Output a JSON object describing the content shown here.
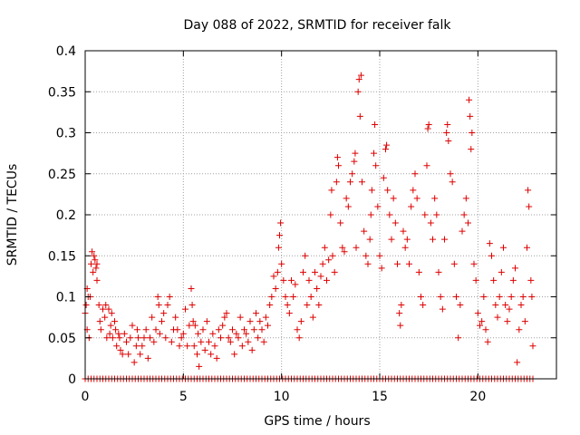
{
  "chart_data": {
    "type": "scatter",
    "title": "Day 088 of 2022, SRMTID for receiver falk",
    "xlabel": "GPS time / hours",
    "ylabel": "SRMTID / TECUs",
    "xlim": [
      0,
      24
    ],
    "ylim": [
      0,
      0.4
    ],
    "grid": true,
    "marker": "+",
    "color": "#dd0000",
    "x_ticks": [
      0,
      5,
      10,
      15,
      20
    ],
    "x_tick_labels": [
      "0",
      "5",
      "10",
      "15",
      "20"
    ],
    "y_ticks": [
      0,
      0.05,
      0.1,
      0.15,
      0.2,
      0.25,
      0.3,
      0.35,
      0.4
    ],
    "y_tick_labels": [
      "0",
      "0.05",
      "0.1",
      "0.15",
      "0.2",
      "0.25",
      "0.3",
      "0.35",
      "0.4"
    ],
    "zero_baseline": {
      "x_start": 0.0,
      "x_end": 22.8,
      "step": 0.15,
      "value": 0
    },
    "series": [
      {
        "name": "SRMTID",
        "points": [
          [
            0.0,
            0.08
          ],
          [
            0.05,
            0.09
          ],
          [
            0.1,
            0.11
          ],
          [
            0.1,
            0.06
          ],
          [
            0.15,
            0.1
          ],
          [
            0.2,
            0.05
          ],
          [
            0.25,
            0.1
          ],
          [
            0.3,
            0.14
          ],
          [
            0.35,
            0.155
          ],
          [
            0.4,
            0.13
          ],
          [
            0.45,
            0.15
          ],
          [
            0.5,
            0.145
          ],
          [
            0.55,
            0.135
          ],
          [
            0.6,
            0.14
          ],
          [
            0.6,
            0.12
          ],
          [
            0.7,
            0.09
          ],
          [
            0.75,
            0.07
          ],
          [
            0.8,
            0.06
          ],
          [
            0.9,
            0.085
          ],
          [
            1.0,
            0.075
          ],
          [
            1.05,
            0.09
          ],
          [
            1.1,
            0.05
          ],
          [
            1.2,
            0.085
          ],
          [
            1.25,
            0.055
          ],
          [
            1.3,
            0.065
          ],
          [
            1.35,
            0.08
          ],
          [
            1.4,
            0.05
          ],
          [
            1.5,
            0.07
          ],
          [
            1.55,
            0.06
          ],
          [
            1.6,
            0.04
          ],
          [
            1.7,
            0.055
          ],
          [
            1.75,
            0.05
          ],
          [
            1.8,
            0.035
          ],
          [
            1.9,
            0.03
          ],
          [
            2.0,
            0.055
          ],
          [
            2.1,
            0.045
          ],
          [
            2.2,
            0.03
          ],
          [
            2.3,
            0.05
          ],
          [
            2.4,
            0.065
          ],
          [
            2.5,
            0.02
          ],
          [
            2.6,
            0.04
          ],
          [
            2.65,
            0.06
          ],
          [
            2.7,
            0.05
          ],
          [
            2.8,
            0.03
          ],
          [
            2.9,
            0.04
          ],
          [
            3.0,
            0.05
          ],
          [
            3.1,
            0.06
          ],
          [
            3.2,
            0.025
          ],
          [
            3.3,
            0.05
          ],
          [
            3.4,
            0.075
          ],
          [
            3.5,
            0.045
          ],
          [
            3.6,
            0.06
          ],
          [
            3.7,
            0.1
          ],
          [
            3.75,
            0.09
          ],
          [
            3.8,
            0.055
          ],
          [
            3.9,
            0.07
          ],
          [
            4.0,
            0.08
          ],
          [
            4.1,
            0.05
          ],
          [
            4.2,
            0.09
          ],
          [
            4.3,
            0.1
          ],
          [
            4.4,
            0.045
          ],
          [
            4.5,
            0.06
          ],
          [
            4.6,
            0.075
          ],
          [
            4.7,
            0.06
          ],
          [
            4.8,
            0.04
          ],
          [
            4.9,
            0.05
          ],
          [
            5.0,
            0.055
          ],
          [
            5.1,
            0.085
          ],
          [
            5.2,
            0.04
          ],
          [
            5.3,
            0.065
          ],
          [
            5.4,
            0.11
          ],
          [
            5.45,
            0.09
          ],
          [
            5.5,
            0.07
          ],
          [
            5.55,
            0.04
          ],
          [
            5.6,
            0.065
          ],
          [
            5.7,
            0.03
          ],
          [
            5.75,
            0.055
          ],
          [
            5.8,
            0.015
          ],
          [
            5.9,
            0.045
          ],
          [
            6.0,
            0.06
          ],
          [
            6.1,
            0.035
          ],
          [
            6.2,
            0.07
          ],
          [
            6.3,
            0.045
          ],
          [
            6.4,
            0.03
          ],
          [
            6.5,
            0.055
          ],
          [
            6.6,
            0.04
          ],
          [
            6.7,
            0.025
          ],
          [
            6.8,
            0.06
          ],
          [
            6.9,
            0.05
          ],
          [
            7.0,
            0.065
          ],
          [
            7.1,
            0.075
          ],
          [
            7.2,
            0.08
          ],
          [
            7.3,
            0.05
          ],
          [
            7.4,
            0.045
          ],
          [
            7.5,
            0.06
          ],
          [
            7.6,
            0.03
          ],
          [
            7.7,
            0.055
          ],
          [
            7.8,
            0.05
          ],
          [
            7.9,
            0.075
          ],
          [
            8.0,
            0.04
          ],
          [
            8.1,
            0.06
          ],
          [
            8.2,
            0.055
          ],
          [
            8.3,
            0.045
          ],
          [
            8.4,
            0.07
          ],
          [
            8.5,
            0.035
          ],
          [
            8.6,
            0.06
          ],
          [
            8.7,
            0.08
          ],
          [
            8.8,
            0.05
          ],
          [
            8.9,
            0.07
          ],
          [
            9.0,
            0.06
          ],
          [
            9.1,
            0.045
          ],
          [
            9.2,
            0.075
          ],
          [
            9.3,
            0.065
          ],
          [
            9.4,
            0.09
          ],
          [
            9.5,
            0.1
          ],
          [
            9.6,
            0.125
          ],
          [
            9.7,
            0.11
          ],
          [
            9.8,
            0.13
          ],
          [
            9.85,
            0.16
          ],
          [
            9.9,
            0.175
          ],
          [
            9.95,
            0.19
          ],
          [
            10.0,
            0.14
          ],
          [
            10.1,
            0.12
          ],
          [
            10.2,
            0.1
          ],
          [
            10.3,
            0.09
          ],
          [
            10.4,
            0.08
          ],
          [
            10.5,
            0.12
          ],
          [
            10.6,
            0.1
          ],
          [
            10.7,
            0.115
          ],
          [
            10.8,
            0.06
          ],
          [
            10.9,
            0.05
          ],
          [
            11.0,
            0.07
          ],
          [
            11.1,
            0.13
          ],
          [
            11.2,
            0.15
          ],
          [
            11.3,
            0.09
          ],
          [
            11.4,
            0.12
          ],
          [
            11.5,
            0.1
          ],
          [
            11.6,
            0.075
          ],
          [
            11.7,
            0.13
          ],
          [
            11.8,
            0.11
          ],
          [
            11.9,
            0.09
          ],
          [
            12.0,
            0.125
          ],
          [
            12.1,
            0.14
          ],
          [
            12.2,
            0.16
          ],
          [
            12.3,
            0.12
          ],
          [
            12.4,
            0.145
          ],
          [
            12.5,
            0.2
          ],
          [
            12.55,
            0.23
          ],
          [
            12.6,
            0.15
          ],
          [
            12.7,
            0.13
          ],
          [
            12.8,
            0.24
          ],
          [
            12.85,
            0.27
          ],
          [
            12.9,
            0.26
          ],
          [
            13.0,
            0.19
          ],
          [
            13.1,
            0.16
          ],
          [
            13.2,
            0.155
          ],
          [
            13.3,
            0.22
          ],
          [
            13.4,
            0.21
          ],
          [
            13.5,
            0.24
          ],
          [
            13.6,
            0.25
          ],
          [
            13.7,
            0.265
          ],
          [
            13.75,
            0.275
          ],
          [
            13.8,
            0.16
          ],
          [
            13.9,
            0.35
          ],
          [
            13.95,
            0.365
          ],
          [
            14.0,
            0.32
          ],
          [
            14.05,
            0.37
          ],
          [
            14.1,
            0.24
          ],
          [
            14.2,
            0.18
          ],
          [
            14.3,
            0.15
          ],
          [
            14.4,
            0.14
          ],
          [
            14.5,
            0.17
          ],
          [
            14.55,
            0.2
          ],
          [
            14.6,
            0.23
          ],
          [
            14.7,
            0.275
          ],
          [
            14.75,
            0.31
          ],
          [
            14.8,
            0.26
          ],
          [
            14.9,
            0.21
          ],
          [
            15.0,
            0.15
          ],
          [
            15.1,
            0.135
          ],
          [
            15.2,
            0.245
          ],
          [
            15.3,
            0.28
          ],
          [
            15.35,
            0.285
          ],
          [
            15.4,
            0.23
          ],
          [
            15.5,
            0.2
          ],
          [
            15.6,
            0.17
          ],
          [
            15.7,
            0.22
          ],
          [
            15.8,
            0.19
          ],
          [
            15.9,
            0.14
          ],
          [
            16.0,
            0.08
          ],
          [
            16.05,
            0.065
          ],
          [
            16.1,
            0.09
          ],
          [
            16.2,
            0.18
          ],
          [
            16.3,
            0.16
          ],
          [
            16.4,
            0.17
          ],
          [
            16.5,
            0.14
          ],
          [
            16.6,
            0.21
          ],
          [
            16.7,
            0.23
          ],
          [
            16.8,
            0.25
          ],
          [
            16.9,
            0.22
          ],
          [
            17.0,
            0.13
          ],
          [
            17.1,
            0.1
          ],
          [
            17.2,
            0.09
          ],
          [
            17.3,
            0.2
          ],
          [
            17.4,
            0.26
          ],
          [
            17.45,
            0.305
          ],
          [
            17.5,
            0.31
          ],
          [
            17.6,
            0.19
          ],
          [
            17.7,
            0.17
          ],
          [
            17.8,
            0.22
          ],
          [
            17.9,
            0.2
          ],
          [
            18.0,
            0.13
          ],
          [
            18.1,
            0.1
          ],
          [
            18.2,
            0.085
          ],
          [
            18.3,
            0.17
          ],
          [
            18.4,
            0.3
          ],
          [
            18.45,
            0.31
          ],
          [
            18.5,
            0.29
          ],
          [
            18.6,
            0.25
          ],
          [
            18.7,
            0.24
          ],
          [
            18.8,
            0.14
          ],
          [
            18.9,
            0.1
          ],
          [
            19.0,
            0.05
          ],
          [
            19.1,
            0.09
          ],
          [
            19.2,
            0.18
          ],
          [
            19.3,
            0.2
          ],
          [
            19.4,
            0.22
          ],
          [
            19.5,
            0.19
          ],
          [
            19.55,
            0.34
          ],
          [
            19.6,
            0.32
          ],
          [
            19.65,
            0.28
          ],
          [
            19.7,
            0.3
          ],
          [
            19.8,
            0.14
          ],
          [
            19.9,
            0.12
          ],
          [
            20.0,
            0.08
          ],
          [
            20.1,
            0.065
          ],
          [
            20.2,
            0.07
          ],
          [
            20.3,
            0.1
          ],
          [
            20.4,
            0.06
          ],
          [
            20.5,
            0.045
          ],
          [
            20.6,
            0.165
          ],
          [
            20.7,
            0.15
          ],
          [
            20.8,
            0.12
          ],
          [
            20.9,
            0.09
          ],
          [
            21.0,
            0.075
          ],
          [
            21.1,
            0.1
          ],
          [
            21.2,
            0.13
          ],
          [
            21.3,
            0.16
          ],
          [
            21.4,
            0.09
          ],
          [
            21.5,
            0.07
          ],
          [
            21.6,
            0.085
          ],
          [
            21.7,
            0.1
          ],
          [
            21.8,
            0.12
          ],
          [
            21.9,
            0.135
          ],
          [
            22.0,
            0.02
          ],
          [
            22.1,
            0.06
          ],
          [
            22.2,
            0.09
          ],
          [
            22.3,
            0.1
          ],
          [
            22.4,
            0.07
          ],
          [
            22.5,
            0.16
          ],
          [
            22.55,
            0.23
          ],
          [
            22.6,
            0.21
          ],
          [
            22.7,
            0.12
          ],
          [
            22.75,
            0.1
          ],
          [
            22.8,
            0.04
          ]
        ]
      }
    ]
  }
}
